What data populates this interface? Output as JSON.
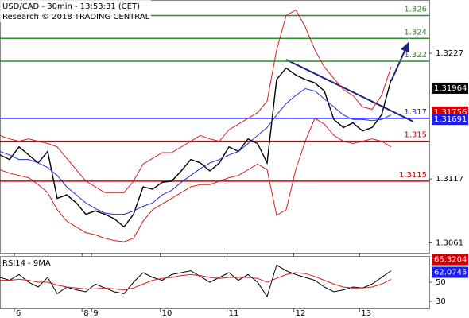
{
  "chart_data": {
    "type": "line",
    "title": "USD/CAD - 30min - 13:53:31 (CET)",
    "subtitle": "Research © 2018 TRADING CENTRAL",
    "x": [
      0,
      1,
      2,
      3,
      4,
      5,
      6,
      7,
      8,
      9,
      10,
      11,
      12,
      13,
      14,
      15,
      16,
      17,
      18,
      19,
      20,
      21,
      22,
      23,
      24,
      25,
      26,
      27,
      28,
      29,
      30,
      31,
      32,
      33,
      34,
      35,
      36,
      37,
      38,
      39,
      40,
      41
    ],
    "xlim": [
      0,
      45
    ],
    "xticks": [
      {
        "value": 1.5,
        "label": "6"
      },
      {
        "value": 8.6,
        "label": "8"
      },
      {
        "value": 9.6,
        "label": "9"
      },
      {
        "value": 16.8,
        "label": "10"
      },
      {
        "value": 23.8,
        "label": "11"
      },
      {
        "value": 30.8,
        "label": "12"
      },
      {
        "value": 37.7,
        "label": "13"
      }
    ],
    "ylim": [
      1.30523,
      1.32736
    ],
    "yticks": [
      1.3227,
      1.3117,
      1.3061
    ],
    "series": [
      {
        "color": "#000000",
        "values": [
          1.3138,
          1.3134,
          1.3145,
          1.3138,
          1.3131,
          1.3141,
          1.31,
          1.3103,
          1.3096,
          1.3086,
          1.3089,
          1.3086,
          1.3082,
          1.3075,
          1.3086,
          1.311,
          1.3108,
          1.3114,
          1.3115,
          1.3124,
          1.3134,
          1.3131,
          1.3124,
          1.3131,
          1.3145,
          1.3141,
          1.3152,
          1.3148,
          1.3131,
          1.3204,
          1.3214,
          1.3208,
          1.3204,
          1.3201,
          1.3194,
          1.3169,
          1.3162,
          1.3166,
          1.3159,
          1.3162,
          1.3173,
          1.3204
        ]
      },
      {
        "color": "#1f2fd0",
        "values": [
          1.3141,
          1.3138,
          1.3134,
          1.3134,
          1.3131,
          1.3127,
          1.312,
          1.311,
          1.3103,
          1.3096,
          1.3091,
          1.3087,
          1.3086,
          1.3086,
          1.3089,
          1.3093,
          1.3096,
          1.3103,
          1.3107,
          1.3114,
          1.312,
          1.3126,
          1.3131,
          1.3134,
          1.3138,
          1.3141,
          1.3148,
          1.3155,
          1.3162,
          1.3173,
          1.3183,
          1.319,
          1.3196,
          1.3194,
          1.3187,
          1.318,
          1.3173,
          1.3169,
          1.3169,
          1.3168,
          1.3169,
          1.3173
        ]
      },
      {
        "color": "#d42020",
        "values": [
          1.3155,
          1.3152,
          1.315,
          1.3152,
          1.315,
          1.3148,
          1.3145,
          1.3135,
          1.3125,
          1.3115,
          1.311,
          1.3105,
          1.3105,
          1.3105,
          1.3115,
          1.313,
          1.3135,
          1.314,
          1.314,
          1.3145,
          1.315,
          1.3155,
          1.3152,
          1.315,
          1.316,
          1.3165,
          1.317,
          1.3175,
          1.3185,
          1.323,
          1.326,
          1.3265,
          1.325,
          1.323,
          1.3215,
          1.3205,
          1.3195,
          1.319,
          1.318,
          1.3178,
          1.319,
          1.3215
        ]
      },
      {
        "color": "#d42020",
        "values": [
          1.3125,
          1.3122,
          1.312,
          1.3118,
          1.3112,
          1.3105,
          1.309,
          1.308,
          1.3075,
          1.307,
          1.3068,
          1.3065,
          1.3063,
          1.3062,
          1.3065,
          1.308,
          1.309,
          1.3095,
          1.31,
          1.3105,
          1.311,
          1.3112,
          1.3112,
          1.3115,
          1.3118,
          1.312,
          1.3125,
          1.313,
          1.3125,
          1.3085,
          1.309,
          1.3125,
          1.315,
          1.317,
          1.3165,
          1.3155,
          1.315,
          1.3148,
          1.315,
          1.3152,
          1.315,
          1.3145
        ]
      }
    ],
    "levels": [
      {
        "value": 1.326,
        "color": "#2e8b2e"
      },
      {
        "value": 1.324,
        "color": "#2e8b2e"
      },
      {
        "value": 1.322,
        "color": "#2e8b2e"
      },
      {
        "value": 1.317,
        "color": "#1a1aff"
      },
      {
        "value": 1.315,
        "color": "#d00000"
      },
      {
        "value": 1.3115,
        "color": "#d00000"
      }
    ],
    "price_tags": [
      {
        "value": 1.31964,
        "color": "#000000"
      },
      {
        "value": 1.31756,
        "color": "#d00000"
      },
      {
        "value": 1.31691,
        "color": "#1a1aff"
      }
    ],
    "rsi": {
      "title": "RSI14 - 9MA",
      "ylim": [
        22.5,
        77.5
      ],
      "yticks": [
        50,
        30
      ],
      "values": [
        55,
        52,
        58,
        50,
        45,
        55,
        38,
        45,
        42,
        40,
        48,
        44,
        40,
        38,
        50,
        60,
        55,
        52,
        58,
        60,
        62,
        56,
        50,
        55,
        60,
        52,
        58,
        50,
        35,
        68,
        62,
        58,
        55,
        52,
        45,
        40,
        42,
        45,
        44,
        48,
        55,
        62
      ],
      "ma": [
        52,
        52,
        53,
        52,
        50,
        50,
        47,
        45,
        44,
        43,
        43,
        44,
        43,
        42,
        44,
        48,
        52,
        54,
        55,
        57,
        58,
        57,
        55,
        54,
        55,
        55,
        55,
        54,
        50,
        54,
        58,
        60,
        59,
        56,
        52,
        48,
        45,
        44,
        44,
        45,
        48,
        53
      ],
      "color": "#000000",
      "ma_color": "#d42020",
      "tags": [
        {
          "value": 65.3204,
          "color": "#d00000"
        },
        {
          "value": 62.0745,
          "color": "#1a1aff"
        }
      ]
    }
  }
}
